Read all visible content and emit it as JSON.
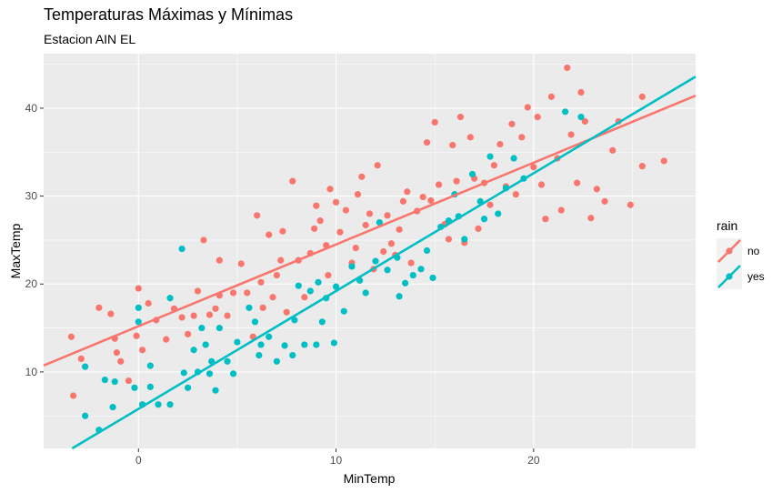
{
  "chart_data": {
    "type": "scatter",
    "title": "Temperaturas Máximas y Mínimas",
    "subtitle": "Estacion AIN EL",
    "xlabel": "MinTemp",
    "ylabel": "MaxTemp",
    "xlim": [
      -4.8,
      28.2
    ],
    "ylim": [
      1.3,
      46.2
    ],
    "xticks": [
      0,
      10,
      20
    ],
    "yticks": [
      10,
      20,
      30,
      40
    ],
    "grid": true,
    "legend": {
      "title": "rain",
      "position": "right"
    },
    "colors": {
      "no": "#F8766D",
      "yes": "#00BFC4",
      "panel": "#EBEBEB",
      "grid": "#FFFFFF"
    },
    "series": [
      {
        "name": "no",
        "color": "#F8766D",
        "fit": {
          "intercept": 15.2,
          "slope": 0.93
        },
        "points": [
          [
            -3.4,
            14.0
          ],
          [
            -3.3,
            7.3
          ],
          [
            -2.9,
            11.5
          ],
          [
            -2.0,
            17.3
          ],
          [
            -1.4,
            16.6
          ],
          [
            -1.2,
            13.8
          ],
          [
            -1.1,
            12.2
          ],
          [
            -0.9,
            11.2
          ],
          [
            -0.5,
            9.0
          ],
          [
            -0.1,
            14.1
          ],
          [
            0.0,
            19.5
          ],
          [
            0.2,
            12.5
          ],
          [
            0.5,
            17.8
          ],
          [
            0.9,
            15.9
          ],
          [
            1.4,
            13.7
          ],
          [
            1.8,
            17.2
          ],
          [
            2.2,
            16.2
          ],
          [
            2.5,
            14.3
          ],
          [
            2.8,
            16.4
          ],
          [
            3.0,
            19.2
          ],
          [
            3.3,
            25.0
          ],
          [
            3.6,
            16.5
          ],
          [
            3.9,
            17.2
          ],
          [
            4.1,
            22.7
          ],
          [
            4.1,
            18.7
          ],
          [
            4.5,
            16.4
          ],
          [
            4.8,
            19.0
          ],
          [
            5.2,
            22.3
          ],
          [
            5.5,
            19.0
          ],
          [
            5.8,
            14.0
          ],
          [
            6.0,
            27.8
          ],
          [
            6.2,
            20.2
          ],
          [
            6.3,
            17.3
          ],
          [
            6.6,
            25.6
          ],
          [
            6.8,
            18.5
          ],
          [
            7.0,
            21.0
          ],
          [
            7.2,
            22.7
          ],
          [
            7.3,
            26.0
          ],
          [
            7.5,
            16.8
          ],
          [
            7.8,
            31.7
          ],
          [
            8.1,
            22.7
          ],
          [
            8.4,
            18.5
          ],
          [
            8.7,
            23.5
          ],
          [
            8.9,
            26.3
          ],
          [
            9.0,
            28.9
          ],
          [
            9.2,
            27.2
          ],
          [
            9.5,
            24.4
          ],
          [
            9.6,
            21.0
          ],
          [
            9.7,
            30.8
          ],
          [
            10.0,
            29.3
          ],
          [
            10.2,
            25.9
          ],
          [
            10.5,
            28.4
          ],
          [
            10.8,
            22.4
          ],
          [
            11.0,
            24.1
          ],
          [
            11.1,
            30.2
          ],
          [
            11.3,
            32.2
          ],
          [
            11.5,
            26.7
          ],
          [
            11.7,
            28.0
          ],
          [
            11.9,
            21.7
          ],
          [
            12.1,
            33.5
          ],
          [
            12.4,
            23.7
          ],
          [
            12.6,
            27.8
          ],
          [
            12.8,
            24.6
          ],
          [
            13.0,
            23.3
          ],
          [
            13.2,
            26.2
          ],
          [
            13.4,
            29.4
          ],
          [
            13.6,
            30.5
          ],
          [
            13.8,
            22.4
          ],
          [
            14.1,
            28.3
          ],
          [
            14.4,
            29.9
          ],
          [
            14.6,
            36.1
          ],
          [
            14.8,
            29.5
          ],
          [
            15.0,
            38.4
          ],
          [
            15.2,
            31.3
          ],
          [
            15.5,
            26.8
          ],
          [
            15.7,
            25.1
          ],
          [
            15.9,
            35.8
          ],
          [
            16.1,
            31.7
          ],
          [
            16.3,
            39.0
          ],
          [
            16.5,
            24.7
          ],
          [
            16.8,
            36.7
          ],
          [
            17.0,
            32.0
          ],
          [
            17.2,
            26.3
          ],
          [
            17.5,
            31.5
          ],
          [
            17.8,
            29.0
          ],
          [
            18.0,
            33.5
          ],
          [
            18.3,
            35.9
          ],
          [
            18.6,
            31.1
          ],
          [
            18.9,
            38.2
          ],
          [
            19.1,
            30.2
          ],
          [
            19.4,
            36.7
          ],
          [
            19.7,
            40.1
          ],
          [
            20.0,
            33.3
          ],
          [
            20.2,
            39.0
          ],
          [
            20.4,
            31.3
          ],
          [
            20.6,
            27.4
          ],
          [
            20.9,
            41.3
          ],
          [
            21.2,
            34.3
          ],
          [
            21.4,
            28.4
          ],
          [
            21.7,
            44.6
          ],
          [
            21.9,
            37.0
          ],
          [
            22.2,
            31.5
          ],
          [
            22.4,
            41.8
          ],
          [
            22.6,
            38.5
          ],
          [
            22.9,
            27.5
          ],
          [
            23.2,
            30.8
          ],
          [
            23.6,
            29.4
          ],
          [
            24.0,
            35.2
          ],
          [
            24.3,
            38.5
          ],
          [
            24.9,
            29.0
          ],
          [
            25.5,
            41.3
          ],
          [
            25.5,
            33.4
          ],
          [
            26.6,
            34.0
          ]
        ]
      },
      {
        "name": "yes",
        "color": "#00BFC4",
        "fit": {
          "intercept": 5.8,
          "slope": 1.34
        },
        "points": [
          [
            -2.7,
            10.6
          ],
          [
            -2.7,
            5.0
          ],
          [
            -2.0,
            3.4
          ],
          [
            -1.7,
            9.1
          ],
          [
            -1.3,
            6.0
          ],
          [
            -1.2,
            8.9
          ],
          [
            -0.2,
            8.2
          ],
          [
            0.0,
            17.3
          ],
          [
            0.0,
            15.7
          ],
          [
            0.2,
            6.3
          ],
          [
            0.6,
            8.3
          ],
          [
            0.6,
            10.7
          ],
          [
            1.0,
            6.3
          ],
          [
            1.6,
            6.3
          ],
          [
            1.6,
            18.4
          ],
          [
            2.2,
            24.0
          ],
          [
            2.3,
            9.9
          ],
          [
            2.5,
            8.2
          ],
          [
            2.8,
            12.5
          ],
          [
            3.0,
            10.0
          ],
          [
            3.2,
            15.0
          ],
          [
            3.4,
            13.1
          ],
          [
            3.6,
            9.8
          ],
          [
            3.7,
            11.2
          ],
          [
            3.9,
            7.9
          ],
          [
            4.1,
            15.0
          ],
          [
            4.5,
            11.2
          ],
          [
            4.8,
            9.8
          ],
          [
            5.0,
            13.4
          ],
          [
            5.6,
            17.3
          ],
          [
            5.9,
            15.7
          ],
          [
            6.1,
            11.9
          ],
          [
            6.2,
            13.1
          ],
          [
            6.6,
            14.0
          ],
          [
            7.0,
            11.2
          ],
          [
            7.4,
            13.0
          ],
          [
            7.8,
            11.9
          ],
          [
            7.9,
            15.9
          ],
          [
            8.1,
            19.8
          ],
          [
            8.4,
            13.1
          ],
          [
            8.7,
            19.2
          ],
          [
            9.0,
            13.1
          ],
          [
            9.1,
            20.2
          ],
          [
            9.3,
            15.7
          ],
          [
            9.5,
            18.4
          ],
          [
            9.9,
            13.3
          ],
          [
            10.0,
            19.7
          ],
          [
            10.4,
            16.9
          ],
          [
            10.8,
            22.0
          ],
          [
            11.2,
            20.4
          ],
          [
            11.5,
            19.0
          ],
          [
            12.0,
            22.6
          ],
          [
            12.2,
            27.0
          ],
          [
            12.6,
            21.6
          ],
          [
            13.1,
            23.0
          ],
          [
            13.2,
            18.6
          ],
          [
            13.5,
            20.1
          ],
          [
            13.9,
            21.0
          ],
          [
            14.3,
            21.7
          ],
          [
            14.6,
            23.8
          ],
          [
            14.9,
            20.7
          ],
          [
            15.3,
            26.5
          ],
          [
            15.7,
            27.2
          ],
          [
            16.0,
            30.2
          ],
          [
            16.2,
            27.7
          ],
          [
            16.5,
            25.1
          ],
          [
            16.9,
            32.5
          ],
          [
            17.3,
            29.4
          ],
          [
            17.5,
            27.4
          ],
          [
            17.8,
            34.5
          ],
          [
            18.2,
            28.0
          ],
          [
            18.6,
            30.9
          ],
          [
            19.0,
            34.3
          ],
          [
            19.5,
            32.0
          ],
          [
            21.6,
            39.6
          ],
          [
            22.4,
            39.0
          ]
        ]
      }
    ]
  }
}
